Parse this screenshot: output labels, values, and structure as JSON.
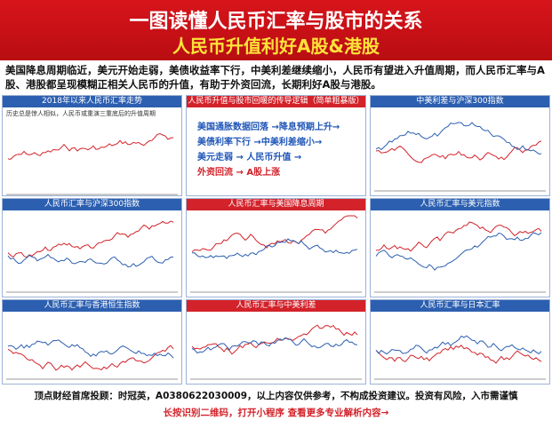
{
  "header": {
    "title": "一图读懂人民币汇率与股市的关系",
    "subtitle": "人民币升值利好A股&港股"
  },
  "intro": "美国降息周期临近，美元开始走弱，美债收益率下行，中美利差继续缩小，人民币有望进入升值周期，而人民币汇率与A股、港股都呈现模糊正相关人民币的升值，有助于外资回流，长期利好A股与港股。",
  "panels": [
    {
      "title": "2018年以来人民币汇率走势",
      "note": "历史总是惊人相似，人民币或重演三重底后的升值周期"
    },
    {
      "title": "人民币升值与股市回暖的传导逻辑（简单粗暴版）",
      "lines": [
        "美国通胀数据回落 →降息预期上升→",
        "美债利率下行 →中美利差缩小→",
        "美元走弱 → 人民币升值 →",
        "外资回流 → A股上涨"
      ]
    },
    {
      "title": "中美利差与沪深300指数"
    },
    {
      "title": "人民币汇率与沪深300指数"
    },
    {
      "title": "人民币汇率与美国降息周期"
    },
    {
      "title": "人民币汇率与美元指数"
    },
    {
      "title": "人民币汇率与香港恒生指数"
    },
    {
      "title": "人民币汇率与中美利差"
    },
    {
      "title": "人民币汇率与日本汇率"
    }
  ],
  "footer": {
    "disclaimer": "顶点财经首席投顾：时冠英，A0380622030009，以上内容仅供参考，不构成投资建议。投资有风险，入市需谨慎",
    "cta": "长按识别二维码，打开小程序 查看更多专业解析内容→"
  }
}
